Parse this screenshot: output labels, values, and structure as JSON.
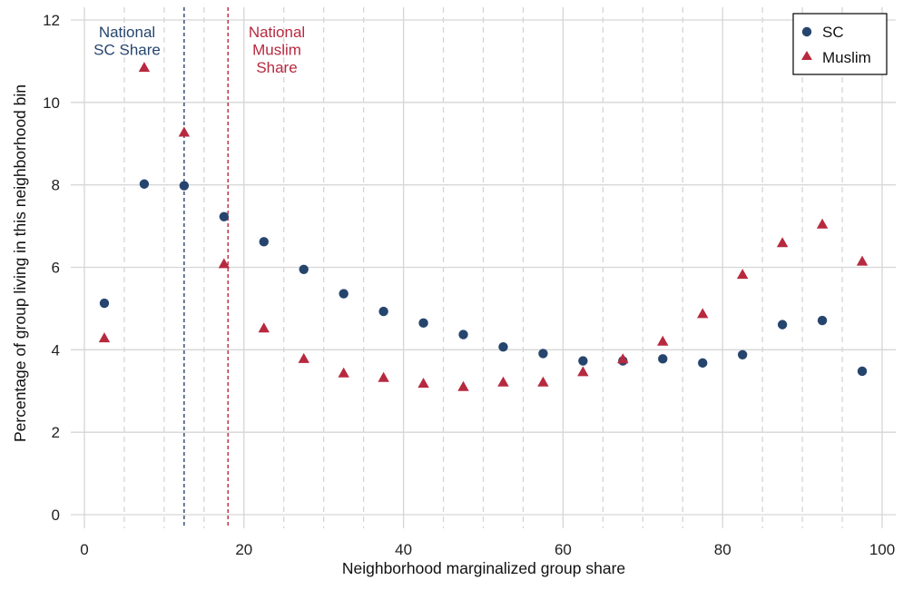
{
  "chart_data": {
    "type": "scatter",
    "xlabel": "Neighborhood marginalized group share",
    "ylabel": "Percentage of group living in this neighborhood bin",
    "xlim": [
      0,
      100
    ],
    "ylim": [
      0,
      12
    ],
    "xticks": [
      0,
      20,
      40,
      60,
      80,
      100
    ],
    "yticks": [
      0,
      2,
      4,
      6,
      8,
      10,
      12
    ],
    "x_minor_gridlines_every": 5,
    "grid": true,
    "legend_position": "top-right",
    "series": [
      {
        "name": "SC",
        "marker": "circle",
        "color": "#26456e",
        "x": [
          2.5,
          7.5,
          12.5,
          17.5,
          22.5,
          27.5,
          32.5,
          37.5,
          42.5,
          47.5,
          52.5,
          57.5,
          62.5,
          67.5,
          72.5,
          77.5,
          82.5,
          87.5,
          92.5,
          97.5
        ],
        "y": [
          5.13,
          8.02,
          7.98,
          7.23,
          6.62,
          5.95,
          5.36,
          4.93,
          4.65,
          4.37,
          4.07,
          3.91,
          3.73,
          3.73,
          3.78,
          3.68,
          3.88,
          4.61,
          4.71,
          3.48
        ]
      },
      {
        "name": "Muslim",
        "marker": "triangle",
        "color": "#b7293f",
        "x": [
          2.5,
          7.5,
          12.5,
          17.5,
          22.5,
          27.5,
          32.5,
          37.5,
          42.5,
          47.5,
          52.5,
          57.5,
          62.5,
          67.5,
          72.5,
          77.5,
          82.5,
          87.5,
          92.5,
          97.5
        ],
        "y": [
          4.28,
          10.84,
          9.27,
          6.08,
          4.52,
          3.78,
          3.43,
          3.32,
          3.18,
          3.1,
          3.21,
          3.21,
          3.46,
          3.77,
          4.2,
          4.87,
          5.82,
          6.59,
          7.04,
          6.14
        ]
      }
    ],
    "reference_lines": [
      {
        "x": 12.5,
        "label_lines": [
          "National",
          "SC Share"
        ],
        "color": "#26456e"
      },
      {
        "x": 18,
        "label_lines": [
          "National",
          "Muslim",
          "Share"
        ],
        "color": "#b7293f"
      }
    ]
  }
}
